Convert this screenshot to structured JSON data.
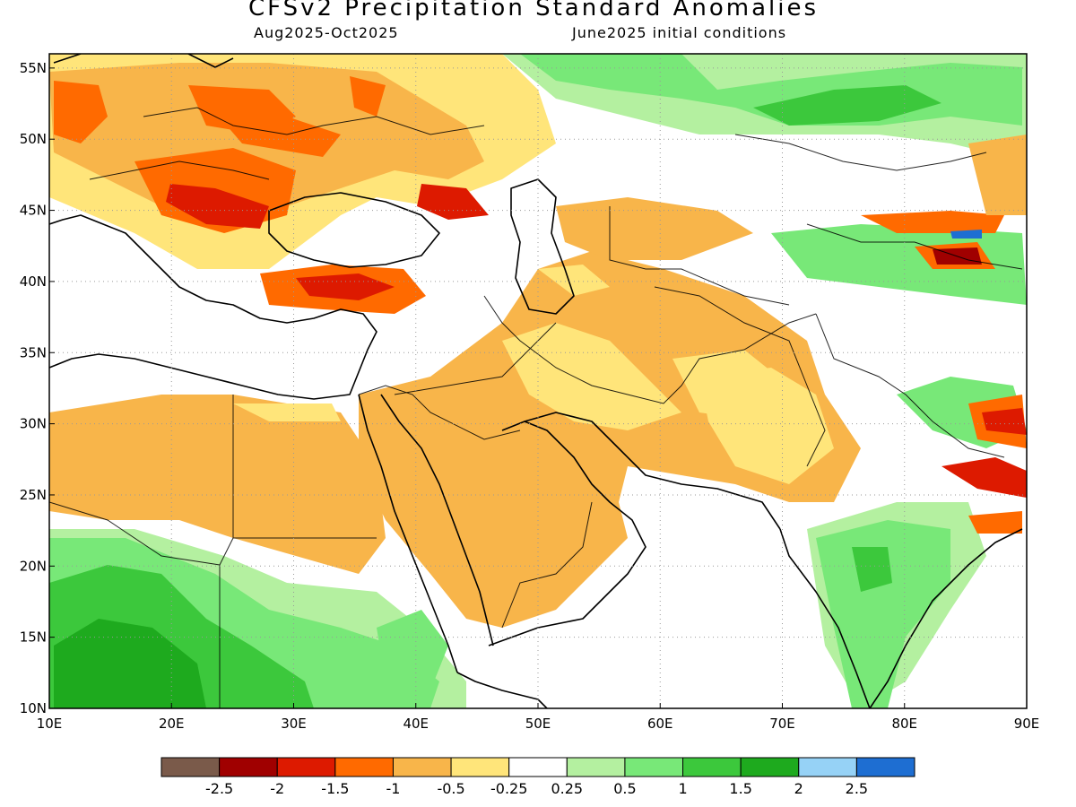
{
  "header": {
    "title": "CFSv2 Precipitation Standard Anomalies",
    "period": "Aug2025-Oct2025",
    "init": "June2025 initial conditions"
  },
  "map": {
    "lon_range": [
      10,
      90
    ],
    "lat_range": [
      10,
      56
    ],
    "lon_ticks": [
      {
        "value": 10,
        "label": "10E"
      },
      {
        "value": 20,
        "label": "20E"
      },
      {
        "value": 30,
        "label": "30E"
      },
      {
        "value": 40,
        "label": "40E"
      },
      {
        "value": 50,
        "label": "50E"
      },
      {
        "value": 60,
        "label": "60E"
      },
      {
        "value": 70,
        "label": "70E"
      },
      {
        "value": 80,
        "label": "80E"
      },
      {
        "value": 90,
        "label": "90E"
      }
    ],
    "lat_ticks": [
      {
        "value": 10,
        "label": "10N"
      },
      {
        "value": 15,
        "label": "15N"
      },
      {
        "value": 20,
        "label": "20N"
      },
      {
        "value": 25,
        "label": "25N"
      },
      {
        "value": 30,
        "label": "30N"
      },
      {
        "value": 35,
        "label": "35N"
      },
      {
        "value": 40,
        "label": "40N"
      },
      {
        "value": 45,
        "label": "45N"
      },
      {
        "value": 50,
        "label": "50N"
      },
      {
        "value": 55,
        "label": "55N"
      }
    ]
  },
  "colorbar": {
    "colors": [
      "#7a5a4a",
      "#a00000",
      "#dd1a00",
      "#ff6a00",
      "#f8b54a",
      "#ffe57a",
      "#ffffff",
      "#b4f0a0",
      "#78e878",
      "#3cc83c",
      "#1eaa1e",
      "#96d2f6",
      "#1e6ed2"
    ],
    "labels": [
      "-2.5",
      "-2",
      "-1.5",
      "-1",
      "-0.5",
      "-0.25",
      "0.25",
      "0.5",
      "1",
      "1.5",
      "2",
      "2.5"
    ]
  }
}
